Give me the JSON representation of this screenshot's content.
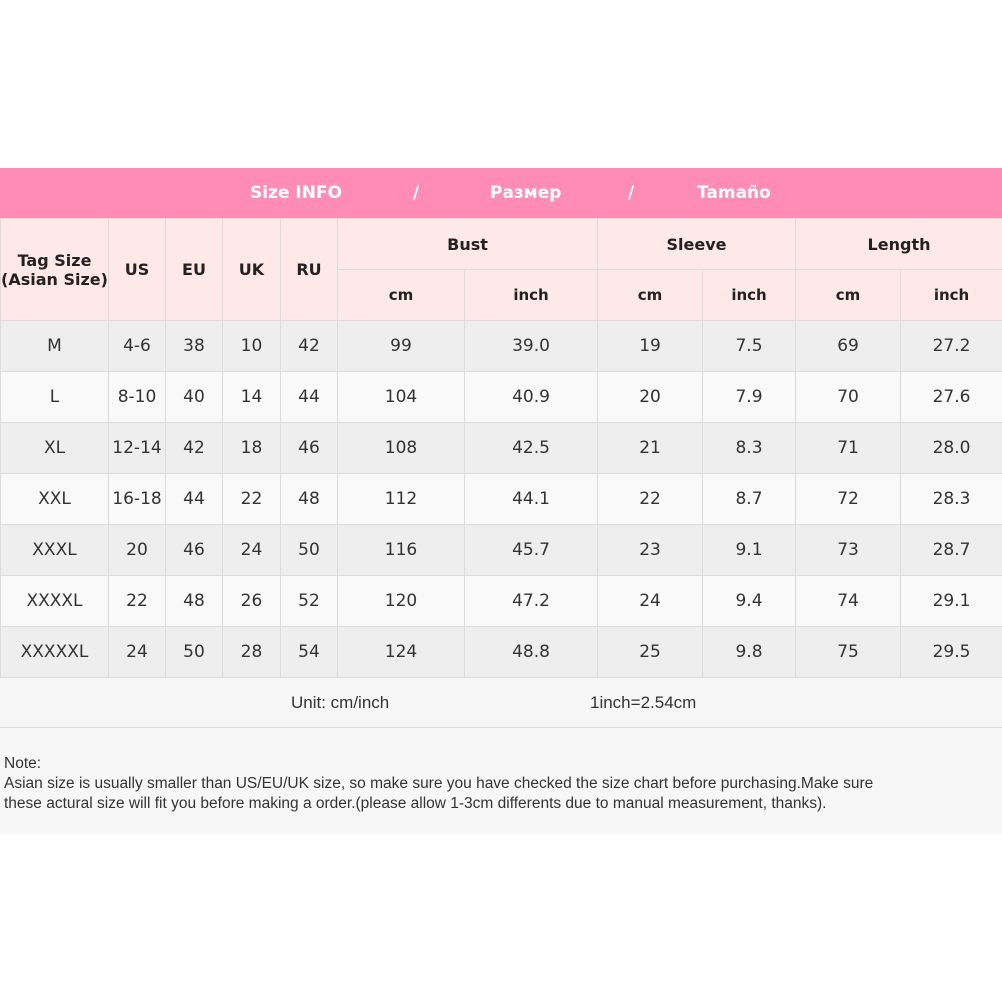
{
  "title": {
    "en": "Size INFO",
    "sep": "/",
    "ru": "Размер",
    "es": "Tamaño"
  },
  "headers": {
    "tag": "Tag Size\n(Asian Size)",
    "tag_line1": "Tag Size",
    "tag_line2": "(Asian Size)",
    "us": "US",
    "eu": "EU",
    "uk": "UK",
    "ru": "RU",
    "bust": "Bust",
    "sleeve": "Sleeve",
    "length": "Length",
    "cm": "cm",
    "inch": "inch"
  },
  "rows": [
    [
      "M",
      "4-6",
      "38",
      "10",
      "42",
      "99",
      "39.0",
      "19",
      "7.5",
      "69",
      "27.2"
    ],
    [
      "L",
      "8-10",
      "40",
      "14",
      "44",
      "104",
      "40.9",
      "20",
      "7.9",
      "70",
      "27.6"
    ],
    [
      "XL",
      "12-14",
      "42",
      "18",
      "46",
      "108",
      "42.5",
      "21",
      "8.3",
      "71",
      "28.0"
    ],
    [
      "XXL",
      "16-18",
      "44",
      "22",
      "48",
      "112",
      "44.1",
      "22",
      "8.7",
      "72",
      "28.3"
    ],
    [
      "XXXL",
      "20",
      "46",
      "24",
      "50",
      "116",
      "45.7",
      "23",
      "9.1",
      "73",
      "28.7"
    ],
    [
      "XXXXL",
      "22",
      "48",
      "26",
      "52",
      "120",
      "47.2",
      "24",
      "9.4",
      "74",
      "29.1"
    ],
    [
      "XXXXXL",
      "24",
      "50",
      "28",
      "54",
      "124",
      "48.8",
      "25",
      "9.8",
      "75",
      "29.5"
    ]
  ],
  "unit": {
    "label": "Unit: cm/inch",
    "conversion": "1inch=2.54cm"
  },
  "note": {
    "label": "Note:",
    "line1": "Asian size is usually smaller than US/EU/UK size, so make sure you have checked the size chart before purchasing.Make sure",
    "line2": "these actural size will fit you before making a order.(please allow 1-3cm differents due to manual measurement, thanks)."
  },
  "colors": {
    "title_bg": "#fe8cb4",
    "header_bg": "#fee8e8"
  }
}
